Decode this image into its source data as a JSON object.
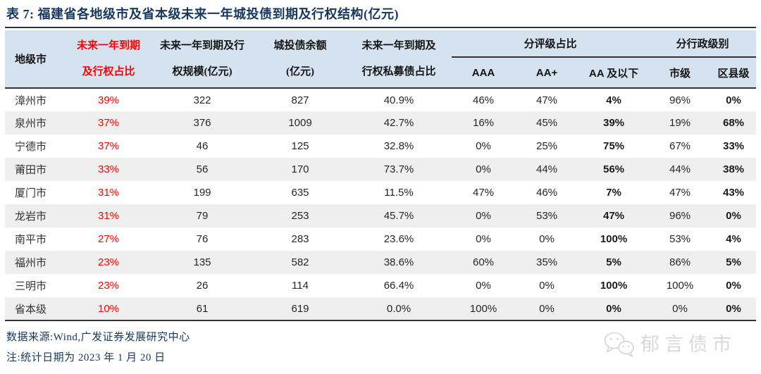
{
  "title": "表 7: 福建省各地级市及省本级未来一年城投债到期及行权结构(亿元)",
  "colors": {
    "navy": "#17375e",
    "red": "#ff0000",
    "header_bg": "#d5e2f0",
    "row_alt_bg": "#efefef",
    "rule_dark": "#333333",
    "watermark_gray": "#d9d9d9"
  },
  "table": {
    "col_names": [
      "city",
      "maturity-ratio",
      "maturity-scale",
      "bond-balance",
      "private-bond-ratio",
      "aaa-ratio",
      "aa-plus-ratio",
      "aa-below-ratio",
      "city-level-ratio",
      "county-level-ratio"
    ],
    "header": {
      "city": "地级市",
      "maturity_ratio_l1": "未来一年到期",
      "maturity_ratio_l2": "及行权占比",
      "scale_l1": "未来一年到期及行",
      "scale_l2": "权规模(亿元)",
      "balance_l1": "城投债余额",
      "balance_l2": "(亿元)",
      "private_l1": "未来一年到期及",
      "private_l2": "行权私募债占比",
      "rating_group": "分评级占比",
      "admin_group": "分行政级别",
      "aaa": "AAA",
      "aa_plus": "AA+",
      "aa_below": "AA 及以下",
      "city_level": "市级",
      "county_level": "区县级"
    },
    "rows": [
      [
        "漳州市",
        "39%",
        "322",
        "827",
        "40.9%",
        "46%",
        "47%",
        "4%",
        "96%",
        "0%"
      ],
      [
        "泉州市",
        "37%",
        "376",
        "1009",
        "42.7%",
        "16%",
        "45%",
        "39%",
        "19%",
        "68%"
      ],
      [
        "宁德市",
        "37%",
        "46",
        "125",
        "32.8%",
        "0%",
        "25%",
        "75%",
        "67%",
        "33%"
      ],
      [
        "莆田市",
        "33%",
        "56",
        "170",
        "73.7%",
        "0%",
        "44%",
        "56%",
        "44%",
        "38%"
      ],
      [
        "厦门市",
        "31%",
        "199",
        "635",
        "11.5%",
        "47%",
        "46%",
        "7%",
        "47%",
        "43%"
      ],
      [
        "龙岩市",
        "31%",
        "79",
        "253",
        "45.7%",
        "0%",
        "53%",
        "47%",
        "96%",
        "0%"
      ],
      [
        "南平市",
        "27%",
        "76",
        "283",
        "23.6%",
        "0%",
        "0%",
        "100%",
        "53%",
        "4%"
      ],
      [
        "福州市",
        "23%",
        "135",
        "582",
        "38.6%",
        "60%",
        "35%",
        "5%",
        "86%",
        "5%"
      ],
      [
        "三明市",
        "23%",
        "26",
        "114",
        "66.4%",
        "0%",
        "0%",
        "100%",
        "100%",
        "0%"
      ],
      [
        "省本级",
        "10%",
        "61",
        "619",
        "0.0%",
        "100%",
        "0%",
        "0%",
        "0%",
        "0%"
      ]
    ]
  },
  "footer": {
    "source": "数据来源:Wind,广发证券发展研究中心",
    "note": "注:统计日期为 2023 年 1 月 20 日",
    "watermark": "郁言债市"
  }
}
